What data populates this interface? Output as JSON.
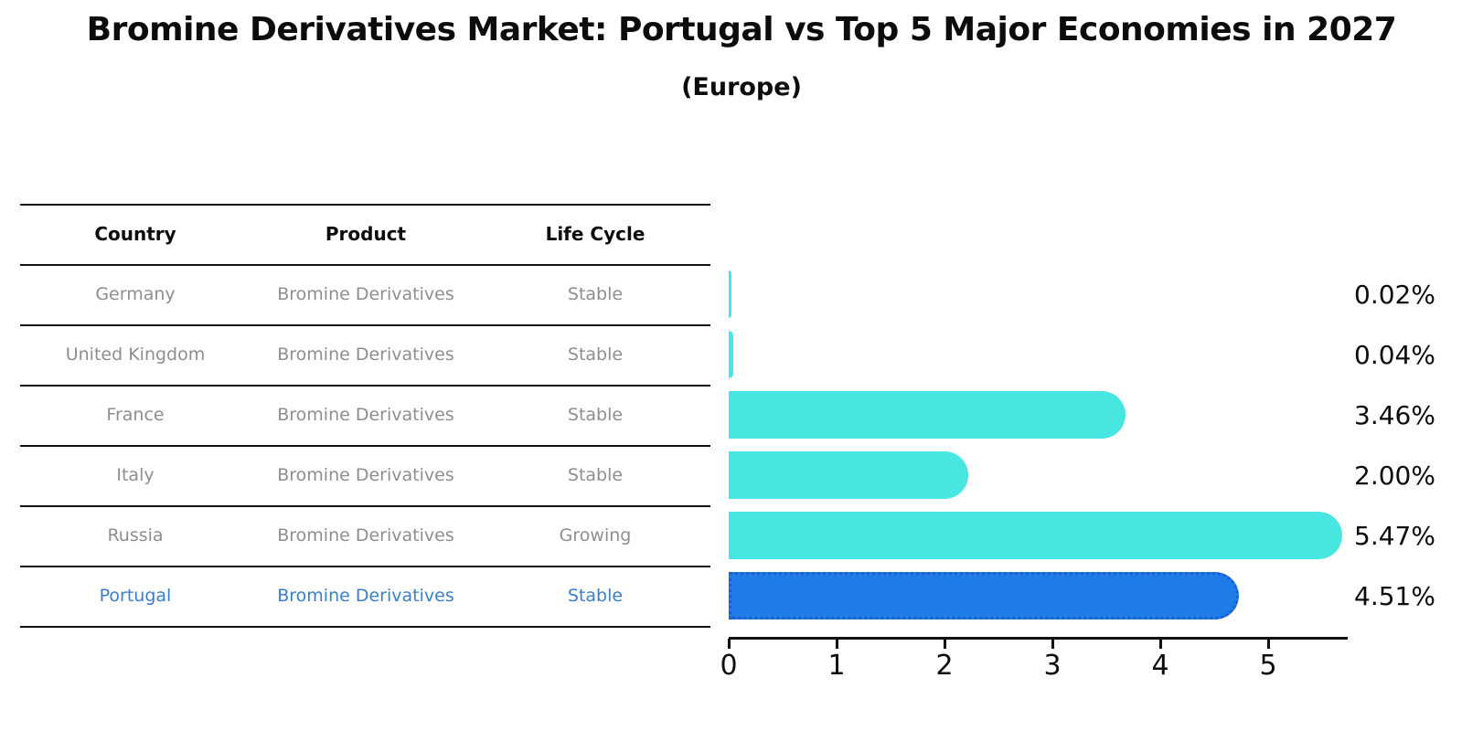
{
  "title": "Bromine Derivatives Market: Portugal vs Top 5 Major Economies in 2027",
  "subtitle": "(Europe)",
  "table": {
    "headers": [
      "Country",
      "Product",
      "Life Cycle"
    ],
    "rows": [
      {
        "country": "Germany",
        "product": "Bromine Derivatives",
        "life_cycle": "Stable",
        "highlight": false
      },
      {
        "country": "United Kingdom",
        "product": "Bromine Derivatives",
        "life_cycle": "Stable",
        "highlight": false
      },
      {
        "country": "France",
        "product": "Bromine Derivatives",
        "life_cycle": "Stable",
        "highlight": false
      },
      {
        "country": "Italy",
        "product": "Bromine Derivatives",
        "life_cycle": "Stable",
        "highlight": false
      },
      {
        "country": "Russia",
        "product": "Bromine Derivatives",
        "life_cycle": "Growing",
        "highlight": false
      },
      {
        "country": "Portugal",
        "product": "Bromine Derivatives",
        "life_cycle": "Stable",
        "highlight": true
      }
    ]
  },
  "chart_data": {
    "type": "bar",
    "orientation": "horizontal",
    "title": "Bromine Derivatives Market: Portugal vs Top 5 Major Economies in 2027",
    "subtitle": "(Europe)",
    "categories": [
      "Germany",
      "United Kingdom",
      "France",
      "Italy",
      "Russia",
      "Portugal"
    ],
    "values": [
      0.02,
      0.04,
      3.46,
      2.0,
      5.47,
      4.51
    ],
    "value_labels": [
      "0.02%",
      "0.04%",
      "3.46%",
      "2.00%",
      "5.47%",
      "4.51%"
    ],
    "x_ticks": [
      "0",
      "1",
      "2",
      "3",
      "4",
      "5"
    ],
    "xlim": [
      0,
      5.75
    ],
    "grid": false,
    "legend": false,
    "highlight_index": 5,
    "colors": {
      "bar": "#48E6E1",
      "highlight_bar": "#1E7CE8",
      "highlight_bar_border": "#1A5FCB",
      "muted_text": "#8E8E8E",
      "highlight_text": "#3A7EC8",
      "axis": "#111111",
      "label_text": "#0C0C0C"
    }
  }
}
